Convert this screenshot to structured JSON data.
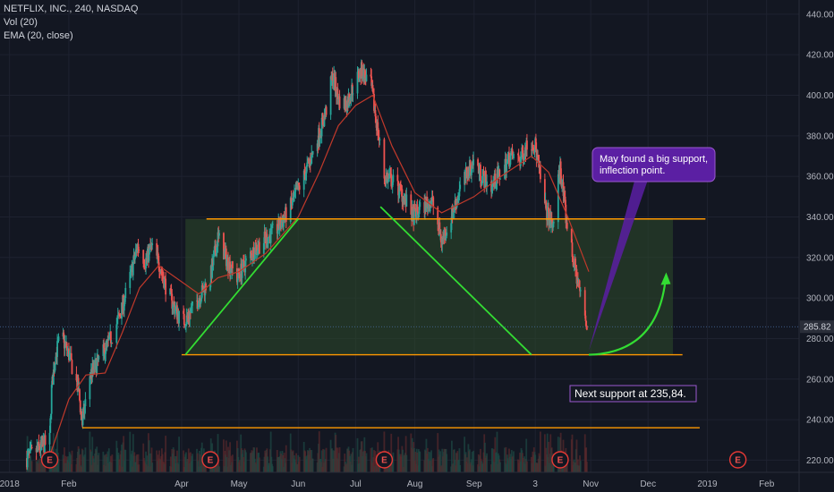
{
  "legend": {
    "line1": "NETFLIX, INC., 240, NASDAQ",
    "line2": "Vol (20)",
    "line3": "EMA (20, close)"
  },
  "colors": {
    "background": "#131722",
    "up": "#26a69a",
    "down": "#ef5350",
    "ema": "#c0392b",
    "grid": "#1e2230",
    "support": "#ff9800",
    "trendline": "#33dd33",
    "box_fill": "#2e4a2a",
    "callout": "#5b1fa3",
    "callout_border": "#9b59d0",
    "price_tag": "#2a2e39"
  },
  "chart_data": {
    "type": "candlestick",
    "symbol": "NETFLIX, INC.",
    "interval": "240",
    "exchange": "NASDAQ",
    "indicators": [
      "Vol (20)",
      "EMA (20, close)"
    ],
    "ylim": [
      214,
      447
    ],
    "xlim": [
      "2017-12-27",
      "2019-02-18"
    ],
    "yticks": [
      220,
      240,
      260,
      280,
      300,
      320,
      340,
      360,
      380,
      400,
      420,
      440
    ],
    "xticks": [
      {
        "label": "2018",
        "date": "2018-01-01"
      },
      {
        "label": "Feb",
        "date": "2018-02-01"
      },
      {
        "label": "Apr",
        "date": "2018-04-01"
      },
      {
        "label": "May",
        "date": "2018-05-01"
      },
      {
        "label": "Jun",
        "date": "2018-06-01"
      },
      {
        "label": "Jul",
        "date": "2018-07-01"
      },
      {
        "label": "Aug",
        "date": "2018-08-01"
      },
      {
        "label": "Sep",
        "date": "2018-09-01"
      },
      {
        "label": "3",
        "date": "2018-10-03"
      },
      {
        "label": "Nov",
        "date": "2018-11-01"
      },
      {
        "label": "Dec",
        "date": "2018-12-01"
      },
      {
        "label": "2019",
        "date": "2019-01-01"
      },
      {
        "label": "Feb",
        "date": "2019-02-01"
      }
    ],
    "close_path": [
      [
        "2018-01-10",
        221
      ],
      [
        "2018-01-17",
        226
      ],
      [
        "2018-01-22",
        230
      ],
      [
        "2018-01-23",
        255
      ],
      [
        "2018-01-25",
        272
      ],
      [
        "2018-01-28",
        282
      ],
      [
        "2018-02-01",
        272
      ],
      [
        "2018-02-06",
        255
      ],
      [
        "2018-02-08",
        238
      ],
      [
        "2018-02-12",
        262
      ],
      [
        "2018-02-16",
        268
      ],
      [
        "2018-02-22",
        278
      ],
      [
        "2018-02-28",
        292
      ],
      [
        "2018-03-05",
        310
      ],
      [
        "2018-03-09",
        326
      ],
      [
        "2018-03-13",
        318
      ],
      [
        "2018-03-16",
        325
      ],
      [
        "2018-03-20",
        318
      ],
      [
        "2018-03-24",
        305
      ],
      [
        "2018-03-28",
        296
      ],
      [
        "2018-04-01",
        288
      ],
      [
        "2018-04-04",
        290
      ],
      [
        "2018-04-10",
        300
      ],
      [
        "2018-04-16",
        310
      ],
      [
        "2018-04-20",
        330
      ],
      [
        "2018-04-25",
        318
      ],
      [
        "2018-04-30",
        310
      ],
      [
        "2018-05-05",
        318
      ],
      [
        "2018-05-10",
        325
      ],
      [
        "2018-05-16",
        330
      ],
      [
        "2018-05-22",
        335
      ],
      [
        "2018-05-28",
        345
      ],
      [
        "2018-06-04",
        360
      ],
      [
        "2018-06-10",
        375
      ],
      [
        "2018-06-15",
        390
      ],
      [
        "2018-06-19",
        410
      ],
      [
        "2018-06-22",
        398
      ],
      [
        "2018-06-26",
        395
      ],
      [
        "2018-06-30",
        405
      ],
      [
        "2018-07-04",
        412
      ],
      [
        "2018-07-09",
        405
      ],
      [
        "2018-07-13",
        380
      ],
      [
        "2018-07-16",
        360
      ],
      [
        "2018-07-20",
        358
      ],
      [
        "2018-07-25",
        352
      ],
      [
        "2018-07-31",
        340
      ],
      [
        "2018-08-05",
        345
      ],
      [
        "2018-08-10",
        348
      ],
      [
        "2018-08-15",
        328
      ],
      [
        "2018-08-20",
        340
      ],
      [
        "2018-08-25",
        355
      ],
      [
        "2018-09-01",
        368
      ],
      [
        "2018-09-05",
        360
      ],
      [
        "2018-09-10",
        355
      ],
      [
        "2018-09-15",
        362
      ],
      [
        "2018-09-20",
        370
      ],
      [
        "2018-09-25",
        368
      ],
      [
        "2018-09-30",
        378
      ],
      [
        "2018-10-03",
        375
      ],
      [
        "2018-10-08",
        345
      ],
      [
        "2018-10-12",
        335
      ],
      [
        "2018-10-16",
        365
      ],
      [
        "2018-10-19",
        340
      ],
      [
        "2018-10-23",
        318
      ],
      [
        "2018-10-27",
        300
      ],
      [
        "2018-10-30",
        286
      ]
    ],
    "ema_path": [
      [
        "2018-01-22",
        222
      ],
      [
        "2018-02-01",
        250
      ],
      [
        "2018-02-10",
        262
      ],
      [
        "2018-02-20",
        263
      ],
      [
        "2018-03-01",
        283
      ],
      [
        "2018-03-10",
        305
      ],
      [
        "2018-03-20",
        316
      ],
      [
        "2018-04-01",
        308
      ],
      [
        "2018-04-10",
        302
      ],
      [
        "2018-04-20",
        310
      ],
      [
        "2018-05-01",
        313
      ],
      [
        "2018-05-15",
        322
      ],
      [
        "2018-06-01",
        340
      ],
      [
        "2018-06-12",
        362
      ],
      [
        "2018-06-22",
        385
      ],
      [
        "2018-07-01",
        395
      ],
      [
        "2018-07-10",
        400
      ],
      [
        "2018-07-20",
        375
      ],
      [
        "2018-08-01",
        352
      ],
      [
        "2018-08-15",
        342
      ],
      [
        "2018-09-01",
        350
      ],
      [
        "2018-09-15",
        360
      ],
      [
        "2018-10-01",
        370
      ],
      [
        "2018-10-10",
        362
      ],
      [
        "2018-10-20",
        340
      ],
      [
        "2018-10-31",
        313
      ]
    ],
    "last_price": 285.82,
    "last_price_label": "285.82",
    "earnings_markers": [
      {
        "date": "2018-01-22",
        "label": "E"
      },
      {
        "date": "2018-04-16",
        "label": "E"
      },
      {
        "date": "2018-07-16",
        "label": "E"
      },
      {
        "date": "2018-10-16",
        "label": "E"
      },
      {
        "date": "2019-01-17",
        "label": "E"
      }
    ],
    "drawings": {
      "resistance_340": {
        "y": 339,
        "x_start": "2018-04-14",
        "x_end": "2018-12-31"
      },
      "support_272": {
        "y": 272,
        "x_start": "2018-04-01",
        "x_end": "2018-12-19"
      },
      "support_236": {
        "y": 236,
        "x_start": "2018-02-08",
        "x_end": "2018-12-28"
      },
      "range_box": {
        "x_start": "2018-04-03",
        "x_end": "2018-12-14",
        "y_low": 272,
        "y_high": 339
      },
      "trend_up": {
        "from": [
          "2018-04-03",
          272
        ],
        "to": [
          "2018-06-01",
          339
        ]
      },
      "trend_down": {
        "from": [
          "2018-07-14",
          345
        ],
        "to": [
          "2018-10-01",
          272
        ]
      },
      "arrow_up": {
        "from": [
          "2018-10-31",
          272
        ],
        "to": [
          "2018-12-10",
          310
        ]
      },
      "pointer": {
        "from": [
          "2018-10-31",
          274
        ],
        "to": [
          "2018-11-30",
          366
        ]
      }
    },
    "annotations": {
      "callout_line1": "May found a big support,",
      "callout_line2": "inflection point.",
      "next_support": "Next support at 235,84."
    }
  }
}
